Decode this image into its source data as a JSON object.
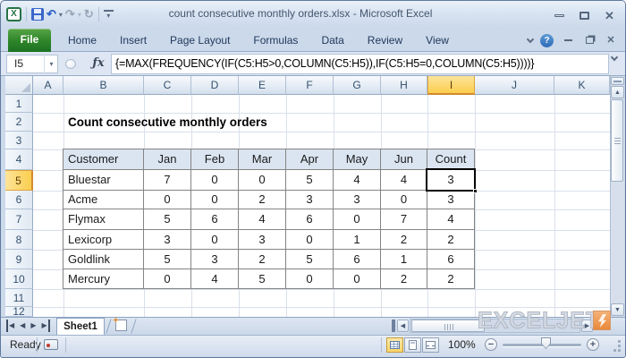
{
  "window": {
    "title": "count consecutive monthly orders.xlsx  -  Microsoft Excel"
  },
  "ribbon": {
    "tabs": [
      {
        "label": "File",
        "active": true
      },
      {
        "label": "Home",
        "active": false
      },
      {
        "label": "Insert",
        "active": false
      },
      {
        "label": "Page Layout",
        "active": false
      },
      {
        "label": "Formulas",
        "active": false
      },
      {
        "label": "Data",
        "active": false
      },
      {
        "label": "Review",
        "active": false
      },
      {
        "label": "View",
        "active": false
      }
    ],
    "help_glyph": "?"
  },
  "quick_access": {
    "logo_glyph": "X",
    "undo_glyph": "↶",
    "redo_glyph": "↷",
    "repeat_glyph": "↻",
    "dropdown_glyph": "▾"
  },
  "formula_bar": {
    "name_box": "I5",
    "name_dropdown_glyph": "▾",
    "fx_label": "ƒx",
    "formula": "{=MAX(FREQUENCY(IF(C5:H5>0,COLUMN(C5:H5)),IF(C5:H5=0,COLUMN(C5:H5))))}"
  },
  "grid": {
    "column_headers": [
      "A",
      "B",
      "C",
      "D",
      "E",
      "F",
      "G",
      "H",
      "I",
      "J",
      "K"
    ],
    "row_headers": [
      "1",
      "2",
      "3",
      "4",
      "5",
      "6",
      "7",
      "8",
      "9",
      "10",
      "11",
      "12"
    ],
    "selected_column": "I",
    "selected_row": "5",
    "selected_cell": "I5",
    "title": "Count consecutive monthly orders",
    "table": {
      "headers": [
        "Customer",
        "Jan",
        "Feb",
        "Mar",
        "Apr",
        "May",
        "Jun",
        "Count"
      ],
      "rows": [
        [
          "Bluestar",
          "7",
          "0",
          "0",
          "5",
          "4",
          "4",
          "3"
        ],
        [
          "Acme",
          "0",
          "0",
          "2",
          "3",
          "3",
          "0",
          "3"
        ],
        [
          "Flymax",
          "5",
          "6",
          "4",
          "6",
          "0",
          "7",
          "4"
        ],
        [
          "Lexicorp",
          "3",
          "0",
          "3",
          "0",
          "1",
          "2",
          "2"
        ],
        [
          "Goldlink",
          "5",
          "3",
          "2",
          "5",
          "6",
          "1",
          "6"
        ],
        [
          "Mercury",
          "0",
          "4",
          "5",
          "0",
          "0",
          "2",
          "2"
        ]
      ]
    }
  },
  "sheet_bar": {
    "tabs": [
      {
        "label": "Sheet1",
        "active": true
      }
    ],
    "nav_glyphs": {
      "first": "◀",
      "prev": "◀",
      "next": "▶",
      "last": "▶"
    }
  },
  "scrollbars": {
    "up_glyph": "▲",
    "down_glyph": "▼",
    "left_glyph": "◀",
    "right_glyph": "▶"
  },
  "status_bar": {
    "mode": "Ready",
    "zoom_level": "100%",
    "zoom_out_glyph": "−",
    "zoom_in_glyph": "+"
  },
  "watermark": {
    "text": "EXCELJET"
  },
  "colors": {
    "file_tab_green": "#2e8428",
    "selected_header_fill": "#fbce4e",
    "table_header_fill": "#dbe5f1",
    "chrome_blue": "#ccd9ea",
    "brand_orange": "#e8883a",
    "table_border": "#848484"
  }
}
